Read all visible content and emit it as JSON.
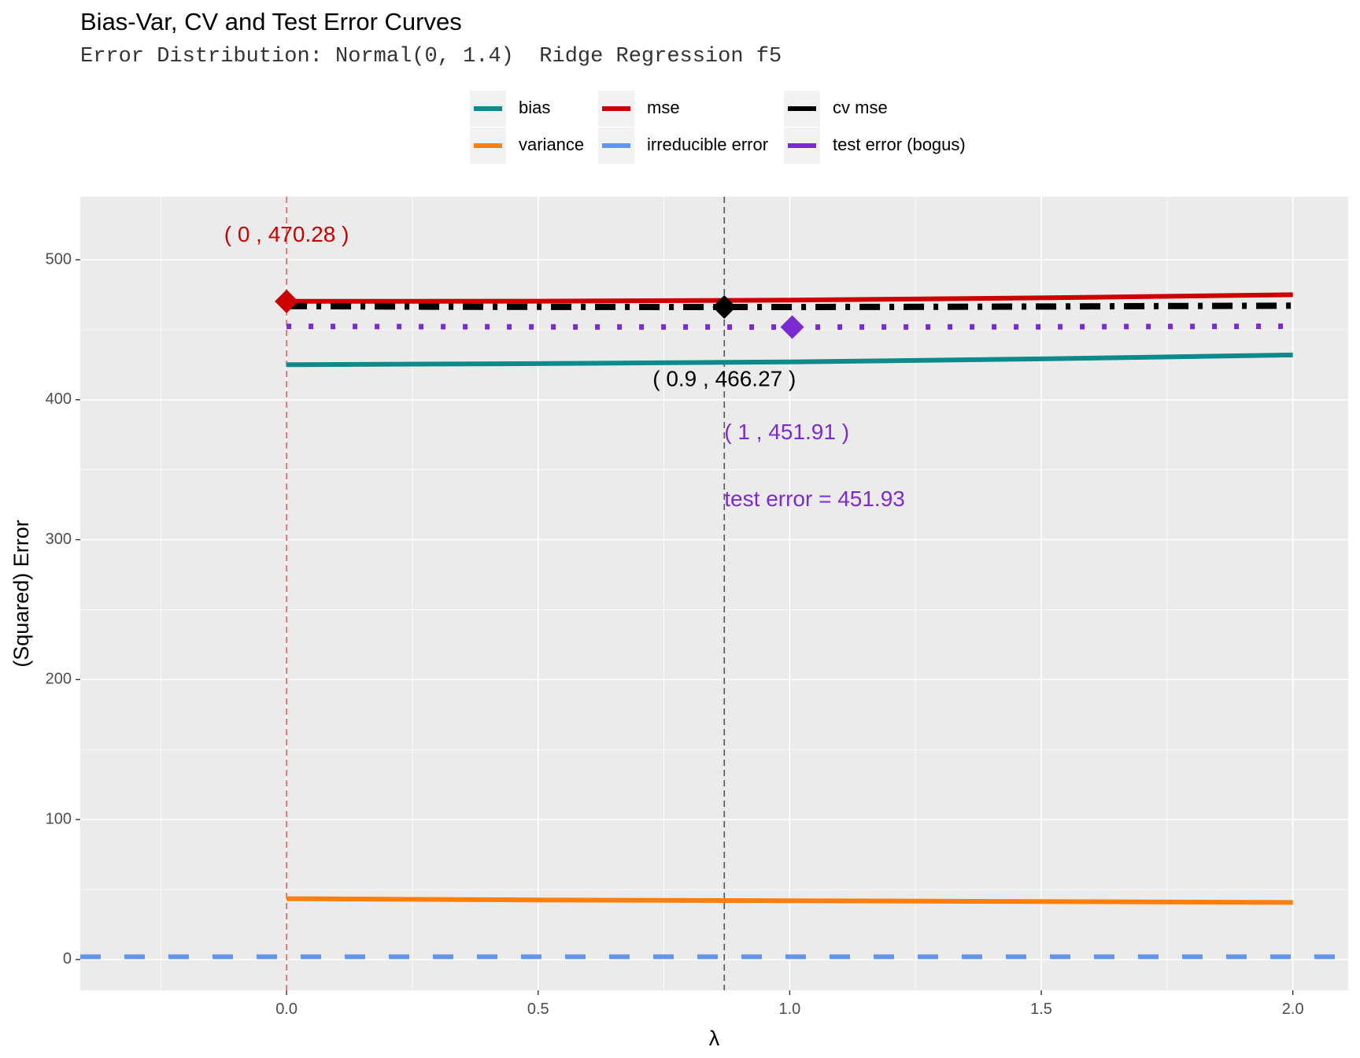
{
  "chart_data": {
    "type": "line",
    "title": "Bias-Var, CV and Test Error Curves",
    "subtitle": "Error Distribution: Normal(0, 1.4)  Ridge Regression f5",
    "xlabel": "λ",
    "ylabel": "(Squared) Error",
    "xlim": [
      -0.41,
      2.11
    ],
    "ylim": [
      -22,
      545
    ],
    "x_ticks": [
      0.0,
      0.5,
      1.0,
      1.5,
      2.0
    ],
    "x_tick_labels": [
      "0.0",
      "0.5",
      "1.0",
      "1.5",
      "2.0"
    ],
    "y_ticks": [
      0,
      100,
      200,
      300,
      400,
      500
    ],
    "y_tick_labels": [
      "0",
      "100",
      "200",
      "300",
      "400",
      "500"
    ],
    "grid": true,
    "legend_position": "top",
    "series": [
      {
        "name": "bias",
        "color": "#0d8a8a",
        "style": "solid",
        "x": [
          0,
          0.5,
          1.0,
          1.5,
          2.0
        ],
        "y": [
          425,
          425.8,
          427,
          429.2,
          432
        ]
      },
      {
        "name": "variance",
        "color": "#ff7f0e",
        "style": "solid",
        "x": [
          0,
          0.5,
          1.0,
          1.5,
          2.0
        ],
        "y": [
          43.5,
          42.6,
          42,
          41.4,
          40.8
        ]
      },
      {
        "name": "mse",
        "color": "#cc0000",
        "style": "solid",
        "x": [
          0,
          0.5,
          1.0,
          1.5,
          2.0
        ],
        "y": [
          470.28,
          470.4,
          471.2,
          472.8,
          475
        ]
      },
      {
        "name": "irreducible error",
        "color": "#6495ed",
        "style": "dashed",
        "x": [
          -0.41,
          2.11
        ],
        "y": [
          1.96,
          1.96
        ]
      },
      {
        "name": "cv mse",
        "color": "#000000",
        "style": "dashdot",
        "x": [
          0.0,
          0.3,
          0.6,
          0.9,
          1.2,
          1.5,
          1.8,
          2.0
        ],
        "y": [
          466.9,
          466.5,
          466.3,
          466.27,
          466.3,
          466.6,
          467,
          467.2
        ]
      },
      {
        "name": "test error (bogus)",
        "color": "#7b2cd0",
        "style": "dotted",
        "x": [
          0.0,
          0.5,
          1.0,
          1.5,
          2.0
        ],
        "y": [
          452.4,
          452.0,
          451.91,
          452.1,
          452.5
        ]
      }
    ],
    "vlines": [
      {
        "x": 0,
        "color": "#e06060"
      },
      {
        "x": 0.87,
        "color": "#555555"
      }
    ],
    "markers": [
      {
        "x": 0,
        "y": 470.28,
        "color": "#cc0000"
      },
      {
        "x": 0.87,
        "y": 466.27,
        "color": "#000000"
      },
      {
        "x": 1.005,
        "y": 451.91,
        "color": "#7b2cd0"
      }
    ],
    "annotations": [
      {
        "text": "( 0 ,  470.28 )",
        "x": 0,
        "y": 517,
        "color": "#cc0000",
        "anchor": "middle"
      },
      {
        "text": "( 0.9 ,  466.27 )",
        "x": 0.87,
        "y": 414,
        "color": "#000000",
        "anchor": "middle"
      },
      {
        "text": "( 1 ,  451.91 )",
        "x": 0.87,
        "y": 376,
        "color": "#7b2cd0",
        "anchor": "start"
      },
      {
        "text": "test error =  451.93",
        "x": 0.87,
        "y": 328,
        "color": "#7b2cd0",
        "anchor": "start"
      }
    ]
  }
}
